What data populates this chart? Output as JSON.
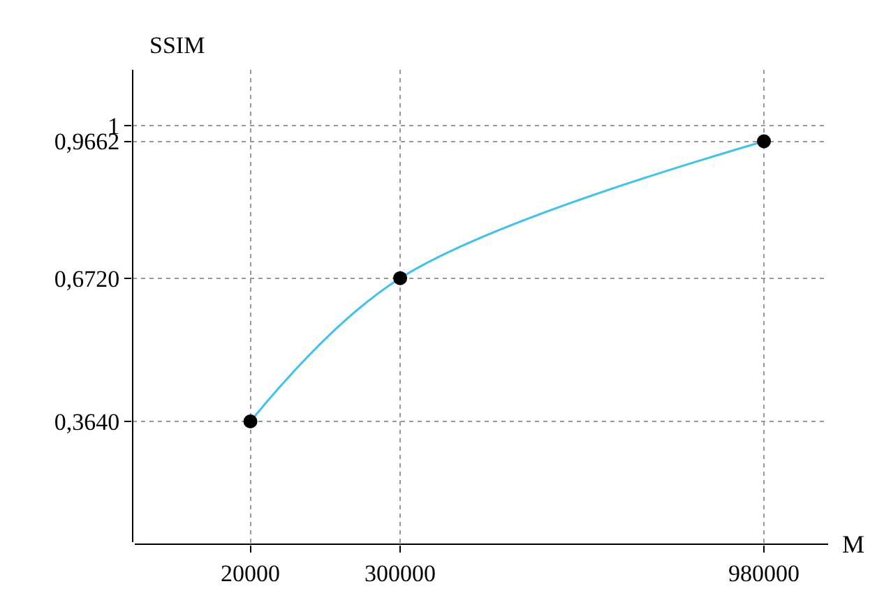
{
  "chart_data": {
    "type": "line",
    "xlabel": "M",
    "ylabel": "SSIM",
    "x": [
      20000,
      300000,
      980000
    ],
    "series": [
      {
        "color": "#3ec3ef",
        "values": [
          0.364,
          0.672,
          0.9662
        ]
      }
    ],
    "xlim": [
      -200000,
      1100000
    ],
    "ylim": [
      0.1,
      1.12
    ],
    "xticks": [
      20000,
      300000,
      980000
    ],
    "yticks": [
      {
        "value": 0.364,
        "label": "0,3640"
      },
      {
        "value": 0.672,
        "label": "0,6720"
      },
      {
        "value": 0.9662,
        "label": "0,9662"
      },
      1
    ],
    "marker": "circle",
    "line_style": "solid",
    "grid": true,
    "legend": false
  }
}
